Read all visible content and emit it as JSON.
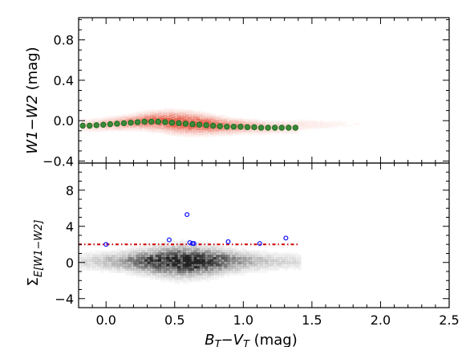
{
  "chart_data": [
    {
      "panel": "top",
      "type": "scatter",
      "ylabel": {
        "main": "W1−W2",
        "unit": "(mag)"
      },
      "xlim": [
        -0.2,
        2.5
      ],
      "ylim": [
        -0.42,
        1.02
      ],
      "yticks": [
        "−0.4",
        "0.0",
        "0.4",
        "0.8"
      ],
      "ytick_values": [
        -0.4,
        0.0,
        0.4,
        0.8
      ],
      "xtick_values": [
        0.0,
        0.5,
        1.0,
        1.5,
        2.0,
        2.5
      ],
      "density_color": "#e34a33",
      "binned_marker_color": "#1f6b1f",
      "binned_trend": {
        "x": [
          -0.17,
          -0.12,
          -0.07,
          -0.02,
          0.03,
          0.08,
          0.13,
          0.18,
          0.23,
          0.28,
          0.33,
          0.38,
          0.43,
          0.48,
          0.53,
          0.58,
          0.63,
          0.68,
          0.73,
          0.78,
          0.83,
          0.88,
          0.93,
          0.98,
          1.03,
          1.08,
          1.13,
          1.18,
          1.23,
          1.28,
          1.33,
          1.38
        ],
        "y": [
          -0.05,
          -0.05,
          -0.045,
          -0.04,
          -0.035,
          -0.03,
          -0.025,
          -0.02,
          -0.015,
          -0.01,
          -0.01,
          -0.01,
          -0.015,
          -0.02,
          -0.025,
          -0.03,
          -0.035,
          -0.04,
          -0.045,
          -0.05,
          -0.055,
          -0.06,
          -0.06,
          -0.06,
          -0.065,
          -0.065,
          -0.07,
          -0.07,
          -0.07,
          -0.07,
          -0.07,
          -0.07
        ]
      }
    },
    {
      "panel": "bottom",
      "type": "scatter",
      "ylabel": {
        "symbol": "Σ",
        "subscript": "E[W1−W2]"
      },
      "xlabel": {
        "main": "B",
        "sub1": "T",
        "minus": "−V",
        "sub2": "T",
        "unit": " (mag)"
      },
      "xlim": [
        -0.2,
        2.5
      ],
      "ylim": [
        -5,
        11
      ],
      "xticks": [
        "0.0",
        "0.5",
        "1.0",
        "1.5",
        "2.0",
        "2.5"
      ],
      "xtick_values": [
        0.0,
        0.5,
        1.0,
        1.5,
        2.0,
        2.5
      ],
      "yticks": [
        "−4",
        "0",
        "4",
        "8"
      ],
      "ytick_values": [
        -4,
        0,
        4,
        8
      ],
      "density_color": "#000000",
      "threshold": {
        "y": 2,
        "x_range": [
          -0.2,
          1.4
        ],
        "color": "#cc0000"
      },
      "outliers": {
        "color": "#1a1aff",
        "x": [
          0.0,
          0.46,
          0.59,
          0.61,
          0.63,
          0.64,
          0.89,
          1.12,
          1.31
        ],
        "y": [
          2.0,
          2.5,
          5.3,
          2.2,
          2.1,
          2.1,
          2.3,
          2.1,
          2.7
        ]
      }
    }
  ]
}
